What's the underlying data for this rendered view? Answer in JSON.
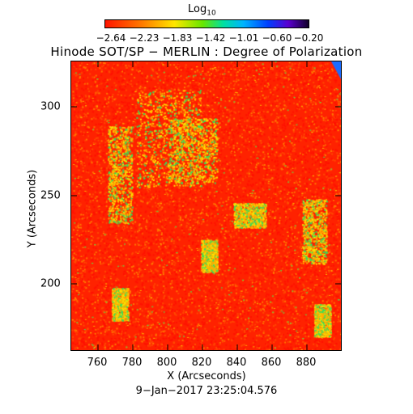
{
  "colorbar": {
    "title": "Log",
    "title_sub": "10",
    "ticks": [
      "−2.64",
      "−2.23",
      "−1.83",
      "−1.42",
      "−1.01",
      "−0.60",
      "−0.20"
    ]
  },
  "plot": {
    "title": "Hinode SOT/SP − MERLIN : Degree of Polarization",
    "xlabel": "X (Arcseconds)",
    "ylabel": "Y (Arcseconds)",
    "xticks": [
      "760",
      "780",
      "800",
      "820",
      "840",
      "860",
      "880"
    ],
    "yticks": [
      "300",
      "250",
      "200"
    ],
    "timestamp": "9−Jan−2017  23:25:04.576"
  },
  "colors": {
    "background_map": "#ff2a00",
    "low": "#ff1a00",
    "mid": "#ffe000",
    "high": "#22e04a"
  }
}
